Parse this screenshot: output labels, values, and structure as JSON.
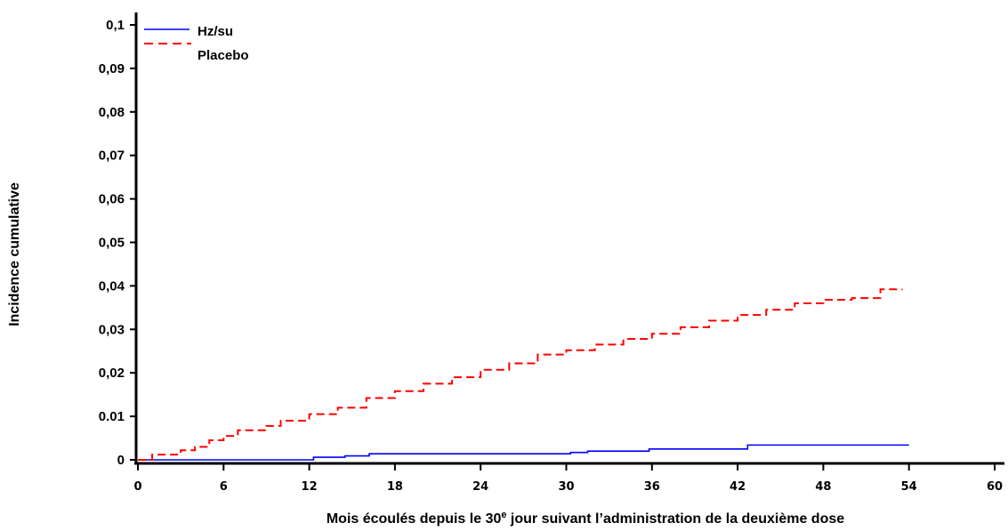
{
  "chart_data": {
    "type": "line",
    "title": "",
    "ylabel": "Incidence cumulative",
    "xlabel": {
      "before": "Mois écoulés depuis le 30",
      "sup": "e",
      "after": " jour suivant l’administration de la deuxième dose"
    },
    "xlim": [
      0,
      60
    ],
    "ylim": [
      0,
      0.1
    ],
    "xticks": [
      0,
      6,
      12,
      18,
      24,
      30,
      36,
      42,
      48,
      54,
      60
    ],
    "xtick_labels": [
      "0",
      "6",
      "12",
      "18",
      "24",
      "30",
      "36",
      "42",
      "48",
      "54",
      "60"
    ],
    "yticks": [
      0,
      0.01,
      0.02,
      0.03,
      0.04,
      0.05,
      0.06,
      0.07,
      0.08,
      0.09,
      0.1
    ],
    "ytick_labels": [
      "0",
      "0.01",
      "0,02",
      "0,03",
      "0,04",
      "0,05",
      "0,06",
      "0,07",
      "0,08",
      "0,09",
      "0,1"
    ],
    "grid": false,
    "legend_position": "top-left",
    "series": [
      {
        "name": "Hz/su",
        "color": "#0000ff",
        "dash": "solid",
        "x": [
          0,
          12.3,
          12.3,
          14.5,
          14.5,
          16.2,
          16.2,
          30.3,
          30.3,
          31.5,
          31.5,
          35.8,
          35.8,
          42.7,
          42.7,
          54
        ],
        "y": [
          0,
          0,
          0.0006,
          0.0006,
          0.0009,
          0.0009,
          0.0014,
          0.0014,
          0.0017,
          0.0017,
          0.002,
          0.002,
          0.0025,
          0.0025,
          0.0034,
          0.0034
        ]
      },
      {
        "name": "Placebo",
        "color": "#ff0000",
        "dash": "dashed",
        "x": [
          0,
          1,
          3,
          4,
          5,
          6,
          7,
          9,
          10,
          12,
          14,
          16,
          18,
          20,
          22,
          24,
          26,
          28,
          30,
          32,
          34,
          36,
          38,
          40,
          42,
          44,
          46,
          48,
          50,
          52,
          52,
          53.5
        ],
        "y": [
          0,
          0.0012,
          0.0022,
          0.003,
          0.0045,
          0.0055,
          0.0068,
          0.0078,
          0.009,
          0.0105,
          0.012,
          0.0142,
          0.0158,
          0.0175,
          0.019,
          0.0207,
          0.0222,
          0.0242,
          0.0252,
          0.0265,
          0.0278,
          0.029,
          0.0305,
          0.032,
          0.0333,
          0.0345,
          0.036,
          0.0368,
          0.0372,
          0.0372,
          0.0392,
          0.0393
        ]
      }
    ]
  }
}
